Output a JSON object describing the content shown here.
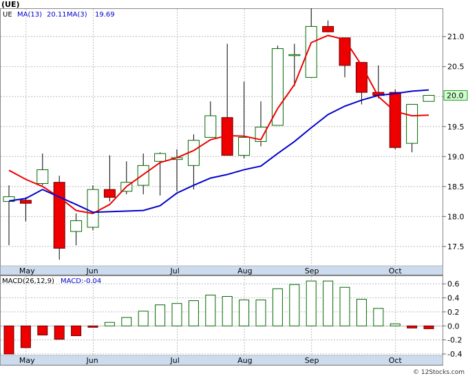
{
  "chart_data": [
    {
      "type": "candlestick",
      "symbol": "(UE)",
      "legend": [
        {
          "label": "UE",
          "color": "#000000"
        },
        {
          "label": "MA(13)",
          "value": "20.11",
          "color": "#0000cc"
        },
        {
          "label": "MA(3)",
          "value": "19.69",
          "color": "#0000cc"
        }
      ],
      "last_price_label": "20.0",
      "x_months": [
        {
          "label": "May",
          "index": 1
        },
        {
          "label": "Jun",
          "index": 5
        },
        {
          "label": "Jul",
          "index": 10
        },
        {
          "label": "Aug",
          "index": 14
        },
        {
          "label": "Sep",
          "index": 18
        },
        {
          "label": "Oct",
          "index": 23
        }
      ],
      "y_ticks": [
        "17.5",
        "18.0",
        "18.5",
        "19.0",
        "19.5",
        "20.0",
        "20.5",
        "21.0"
      ],
      "ylim": [
        17.2,
        21.45
      ],
      "candles": [
        {
          "o": 18.25,
          "h": 18.52,
          "l": 17.52,
          "c": 18.33
        },
        {
          "o": 18.27,
          "h": 18.32,
          "l": 17.92,
          "c": 18.22
        },
        {
          "o": 18.55,
          "h": 19.05,
          "l": 18.52,
          "c": 18.78
        },
        {
          "o": 18.57,
          "h": 18.68,
          "l": 17.28,
          "c": 17.47
        },
        {
          "o": 17.75,
          "h": 18.05,
          "l": 17.52,
          "c": 17.93
        },
        {
          "o": 17.82,
          "h": 18.52,
          "l": 17.77,
          "c": 18.45
        },
        {
          "o": 18.45,
          "h": 19.02,
          "l": 18.25,
          "c": 18.32
        },
        {
          "o": 18.42,
          "h": 18.92,
          "l": 18.37,
          "c": 18.57
        },
        {
          "o": 18.52,
          "h": 19.05,
          "l": 18.37,
          "c": 18.85
        },
        {
          "o": 18.92,
          "h": 19.07,
          "l": 18.35,
          "c": 19.05
        },
        {
          "o": 18.95,
          "h": 19.12,
          "l": 18.42,
          "c": 18.98
        },
        {
          "o": 18.85,
          "h": 19.37,
          "l": 18.45,
          "c": 19.27
        },
        {
          "o": 19.32,
          "h": 19.92,
          "l": 19.32,
          "c": 19.68
        },
        {
          "o": 19.65,
          "h": 20.88,
          "l": 19.02,
          "c": 19.02
        },
        {
          "o": 19.02,
          "h": 20.25,
          "l": 18.97,
          "c": 19.32
        },
        {
          "o": 19.25,
          "h": 19.92,
          "l": 19.17,
          "c": 19.49
        },
        {
          "o": 19.52,
          "h": 20.85,
          "l": 19.52,
          "c": 20.8
        },
        {
          "o": 20.7,
          "h": 20.88,
          "l": 20.17,
          "c": 20.7
        },
        {
          "o": 20.32,
          "h": 21.47,
          "l": 20.32,
          "c": 21.17
        },
        {
          "o": 21.17,
          "h": 21.27,
          "l": 21.07,
          "c": 21.08
        },
        {
          "o": 20.98,
          "h": 20.98,
          "l": 20.32,
          "c": 20.52
        },
        {
          "o": 20.57,
          "h": 20.57,
          "l": 19.87,
          "c": 20.07
        },
        {
          "o": 20.07,
          "h": 20.52,
          "l": 19.97,
          "c": 20.02
        },
        {
          "o": 20.07,
          "h": 20.12,
          "l": 19.12,
          "c": 19.15
        },
        {
          "o": 19.22,
          "h": 19.87,
          "l": 19.07,
          "c": 19.87
        },
        {
          "o": 19.92,
          "h": 20.02,
          "l": 19.92,
          "c": 20.02
        }
      ],
      "ma13": [
        18.26,
        18.3,
        18.45,
        null,
        18.2,
        18.07,
        18.08,
        18.09,
        18.1,
        18.18,
        18.39,
        18.52,
        18.64,
        18.7,
        18.78,
        18.84,
        19.05,
        19.25,
        19.48,
        19.7,
        19.84,
        19.94,
        20.02,
        20.05,
        20.09,
        20.11
      ],
      "ma3": [
        18.77,
        18.62,
        18.5,
        18.32,
        18.1,
        18.05,
        18.2,
        18.5,
        18.7,
        18.9,
        18.98,
        19.1,
        19.28,
        19.35,
        19.34,
        19.28,
        19.8,
        20.2,
        20.9,
        21.02,
        20.95,
        20.52,
        20.0,
        19.75,
        19.68,
        19.69
      ],
      "macd_title": "MACD(26,12,9)",
      "macd_value_label": "MACD:-0.04",
      "macd_y_ticks": [
        "-0.4",
        "-0.2",
        "0.0",
        "0.2",
        "0.4",
        "0.6"
      ],
      "macd_ylim": [
        -0.4,
        0.68
      ],
      "macd_hist": [
        -0.4,
        -0.31,
        -0.13,
        -0.19,
        -0.14,
        -0.02,
        0.05,
        0.12,
        0.21,
        0.3,
        0.32,
        0.36,
        0.44,
        0.42,
        0.37,
        0.37,
        0.53,
        0.59,
        0.64,
        0.64,
        0.55,
        0.38,
        0.25,
        0.03,
        -0.03,
        -0.04
      ],
      "colors": {
        "up": "#ffffff",
        "down": "#ee0000",
        "outline": "#006600",
        "ma_blue": "#0000cc",
        "ma_red": "#ee0000",
        "axis_band": "#ccdcee"
      }
    }
  ],
  "footer": {
    "credit": "© 12Stocks.com"
  }
}
